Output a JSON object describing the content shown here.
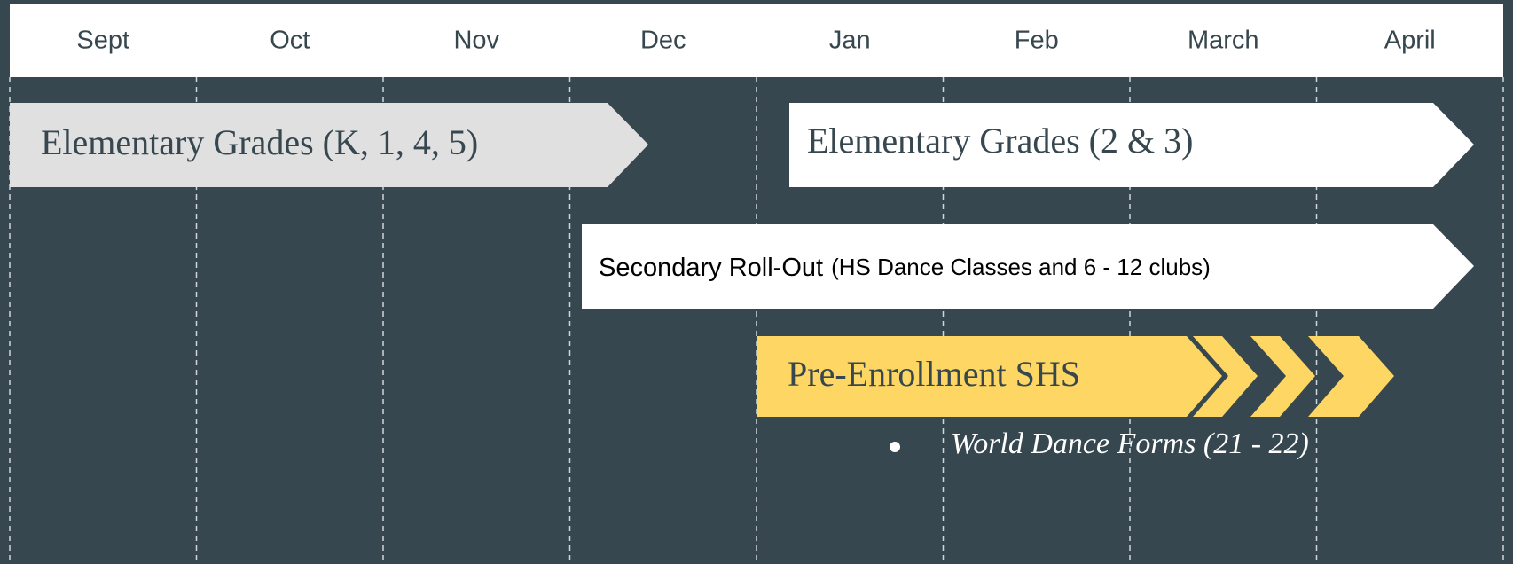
{
  "timeline": {
    "months": [
      "Sept",
      "Oct",
      "Nov",
      "Dec",
      "Jan",
      "Feb",
      "March",
      "April"
    ],
    "bars": [
      {
        "label": "Elementary Grades (K, 1, 4, 5)"
      },
      {
        "label": "Elementary Grades (2 & 3)"
      },
      {
        "label": "Secondary Roll-Out",
        "detail": "(HS Dance Classes and 6 - 12 clubs)"
      },
      {
        "label": "Pre-Enrollment SHS",
        "bullets": [
          "World Dance Forms (21 - 22)"
        ]
      }
    ]
  }
}
